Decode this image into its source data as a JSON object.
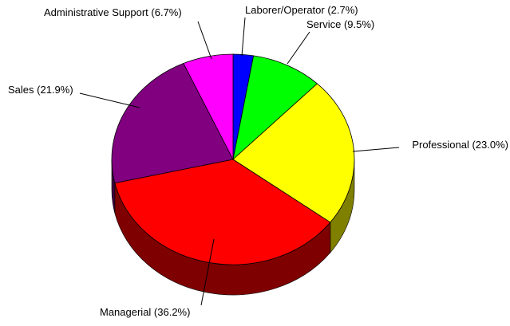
{
  "chart_data": {
    "type": "pie",
    "style": "3d",
    "title": "",
    "start": "12 o'clock",
    "direction": "clockwise",
    "slices": [
      {
        "label": "Laborer/Operator (2.7%)",
        "value": 2.7,
        "color": "#0000ff",
        "side_color": "#00007f"
      },
      {
        "label": "Service (9.5%)",
        "value": 9.5,
        "color": "#00ff00",
        "side_color": "#007f00"
      },
      {
        "label": "Professional (23.0%)",
        "value": 23.0,
        "color": "#ffff00",
        "side_color": "#7f7f00"
      },
      {
        "label": "Managerial (36.2%)",
        "value": 36.2,
        "color": "#ff0000",
        "side_color": "#7f0000"
      },
      {
        "label": "Sales (21.9%)",
        "value": 21.9,
        "color": "#800080",
        "side_color": "#400040"
      },
      {
        "label": "Administrative Support (6.7%)",
        "value": 6.7,
        "color": "#ff00ff",
        "side_color": "#7f007f"
      }
    ]
  }
}
